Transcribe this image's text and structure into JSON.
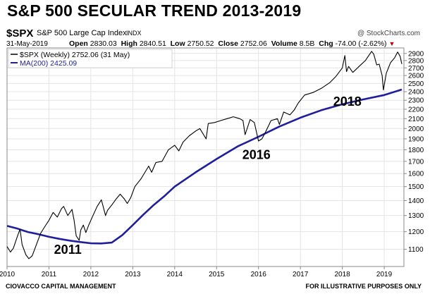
{
  "title": "S&P 500 SECULAR TREND 2013-2019",
  "header": {
    "symbol": "$SPX",
    "name": "S&P 500 Large Cap Index",
    "exchange": "INDX",
    "source": "@ StockCharts.com",
    "date": "31-May-2019",
    "open_label": "Open",
    "open": "2830.03",
    "high_label": "High",
    "high": "2840.51",
    "low_label": "Low",
    "low": "2750.52",
    "close_label": "Close",
    "close": "2752.06",
    "volume_label": "Volume",
    "volume": "8.5B",
    "chg_label": "Chg",
    "chg": "-74.00 (-2.62%)"
  },
  "legend": {
    "price": "$SPX (Weekly) 2752.06 (31 May)",
    "ma": "MA(200) 2425.09"
  },
  "footer": {
    "left": "CIOVACCO CAPITAL MANAGEMENT",
    "right": "FOR ILLUSTRATIVE PURPOSES ONLY"
  },
  "colors": {
    "price": "#000000",
    "ma": "#1f1f9e",
    "chg_arrow": "#c00000",
    "grid": "#e4e4e4"
  },
  "chart_data": {
    "type": "line",
    "title": "S&P 500 SECULAR TREND 2013-2019",
    "y_scale": "log",
    "ylim": [
      1010,
      2980
    ],
    "xlim": [
      2010.0,
      2019.47
    ],
    "grid": true,
    "y_ticks": [
      1100,
      1200,
      1300,
      1400,
      1500,
      1600,
      1700,
      1800,
      1900,
      2000,
      2100,
      2200,
      2300,
      2400,
      2500,
      2600,
      2700,
      2800,
      2900
    ],
    "x_ticks": [
      "2010",
      "2011",
      "2012",
      "2013",
      "2014",
      "2015",
      "2016",
      "2017",
      "2018",
      "2019"
    ],
    "series": [
      {
        "name": "$SPX (Weekly) 2752.06 (31 May)",
        "x": [
          2010.0,
          2010.08,
          2010.15,
          2010.25,
          2010.31,
          2010.36,
          2010.45,
          2010.52,
          2010.6,
          2010.7,
          2010.8,
          2010.9,
          2011.0,
          2011.1,
          2011.2,
          2011.3,
          2011.35,
          2011.45,
          2011.55,
          2011.6,
          2011.65,
          2011.72,
          2011.76,
          2011.82,
          2011.88,
          2011.95,
          2012.05,
          2012.15,
          2012.25,
          2012.35,
          2012.4,
          2012.5,
          2012.6,
          2012.7,
          2012.8,
          2012.87,
          2012.95,
          2013.05,
          2013.2,
          2013.38,
          2013.45,
          2013.55,
          2013.7,
          2013.85,
          2014.0,
          2014.1,
          2014.2,
          2014.35,
          2014.5,
          2014.6,
          2014.75,
          2014.8,
          2014.95,
          2015.1,
          2015.25,
          2015.4,
          2015.55,
          2015.63,
          2015.68,
          2015.8,
          2015.9,
          2016.0,
          2016.08,
          2016.15,
          2016.3,
          2016.45,
          2016.5,
          2016.6,
          2016.75,
          2016.85,
          2016.95,
          2017.1,
          2017.3,
          2017.5,
          2017.7,
          2017.85,
          2018.0,
          2018.06,
          2018.1,
          2018.15,
          2018.25,
          2018.4,
          2018.55,
          2018.7,
          2018.75,
          2018.82,
          2018.88,
          2018.95,
          2018.98,
          2019.05,
          2019.15,
          2019.25,
          2019.32,
          2019.38,
          2019.42
        ],
        "values": [
          1115,
          1085,
          1105,
          1175,
          1215,
          1125,
          1070,
          1050,
          1065,
          1125,
          1190,
          1230,
          1270,
          1320,
          1290,
          1345,
          1360,
          1300,
          1340,
          1270,
          1175,
          1150,
          1210,
          1240,
          1195,
          1240,
          1300,
          1360,
          1405,
          1300,
          1335,
          1370,
          1410,
          1445,
          1410,
          1380,
          1420,
          1500,
          1560,
          1660,
          1610,
          1690,
          1700,
          1800,
          1840,
          1790,
          1870,
          1930,
          1975,
          2000,
          1900,
          2050,
          2060,
          2080,
          2100,
          2120,
          2100,
          2080,
          1940,
          2090,
          2060,
          1880,
          1900,
          1950,
          2080,
          2100,
          2040,
          2170,
          2140,
          2190,
          2270,
          2360,
          2390,
          2440,
          2510,
          2590,
          2700,
          2870,
          2650,
          2720,
          2640,
          2720,
          2800,
          2930,
          2890,
          2740,
          2750,
          2600,
          2420,
          2630,
          2770,
          2840,
          2920,
          2860,
          2752
        ]
      },
      {
        "name": "MA(200) 2425.09",
        "x": [
          2010.0,
          2010.25,
          2010.5,
          2010.75,
          2011.0,
          2011.25,
          2011.5,
          2011.75,
          2012.0,
          2012.25,
          2012.5,
          2012.75,
          2013.0,
          2013.25,
          2013.5,
          2013.75,
          2014.0,
          2014.5,
          2015.0,
          2015.5,
          2016.0,
          2016.5,
          2017.0,
          2017.5,
          2018.0,
          2018.5,
          2019.0,
          2019.42
        ],
        "values": [
          1235,
          1218,
          1198,
          1185,
          1170,
          1158,
          1148,
          1140,
          1133,
          1132,
          1137,
          1180,
          1240,
          1305,
          1370,
          1430,
          1500,
          1610,
          1720,
          1830,
          1920,
          2020,
          2110,
          2190,
          2255,
          2310,
          2360,
          2425
        ]
      }
    ],
    "annotations": [
      {
        "text": "2011",
        "x": 2011.45,
        "y": 1075
      },
      {
        "text": "2016",
        "x": 2015.95,
        "y": 1720
      },
      {
        "text": "2018",
        "x": 2018.12,
        "y": 2240
      }
    ]
  }
}
